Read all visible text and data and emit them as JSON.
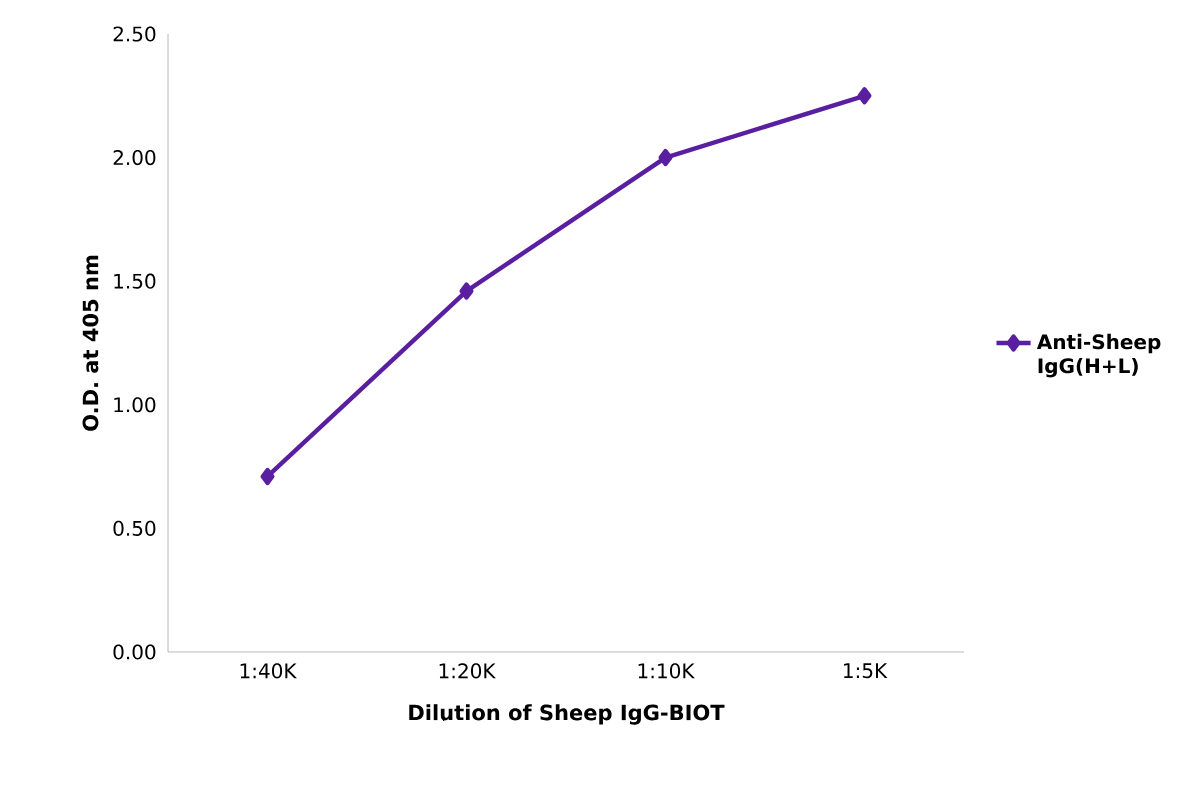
{
  "chart_data": {
    "type": "line",
    "xlabel": "Dilution of Sheep IgG-BIOT",
    "ylabel": "O.D. at 405 nm",
    "categories": [
      "1:40K",
      "1:20K",
      "1:10K",
      "1:5K"
    ],
    "series": [
      {
        "name": "Anti-Sheep IgG(H+L)",
        "color": "#5a1ea0",
        "values": [
          0.71,
          1.46,
          2.0,
          2.25
        ]
      }
    ],
    "ylim": [
      0,
      2.5
    ],
    "yticks": [
      {
        "value": 0,
        "label": "0.00"
      },
      {
        "value": 0.5,
        "label": "0.50"
      },
      {
        "value": 1,
        "label": "1.00"
      },
      {
        "value": 1.5,
        "label": "1.50"
      },
      {
        "value": 2,
        "label": "2.00"
      },
      {
        "value": 2.5,
        "label": "2.50"
      }
    ],
    "grid": false,
    "legend": "right",
    "marker": "diamond",
    "line_style": "solid"
  }
}
